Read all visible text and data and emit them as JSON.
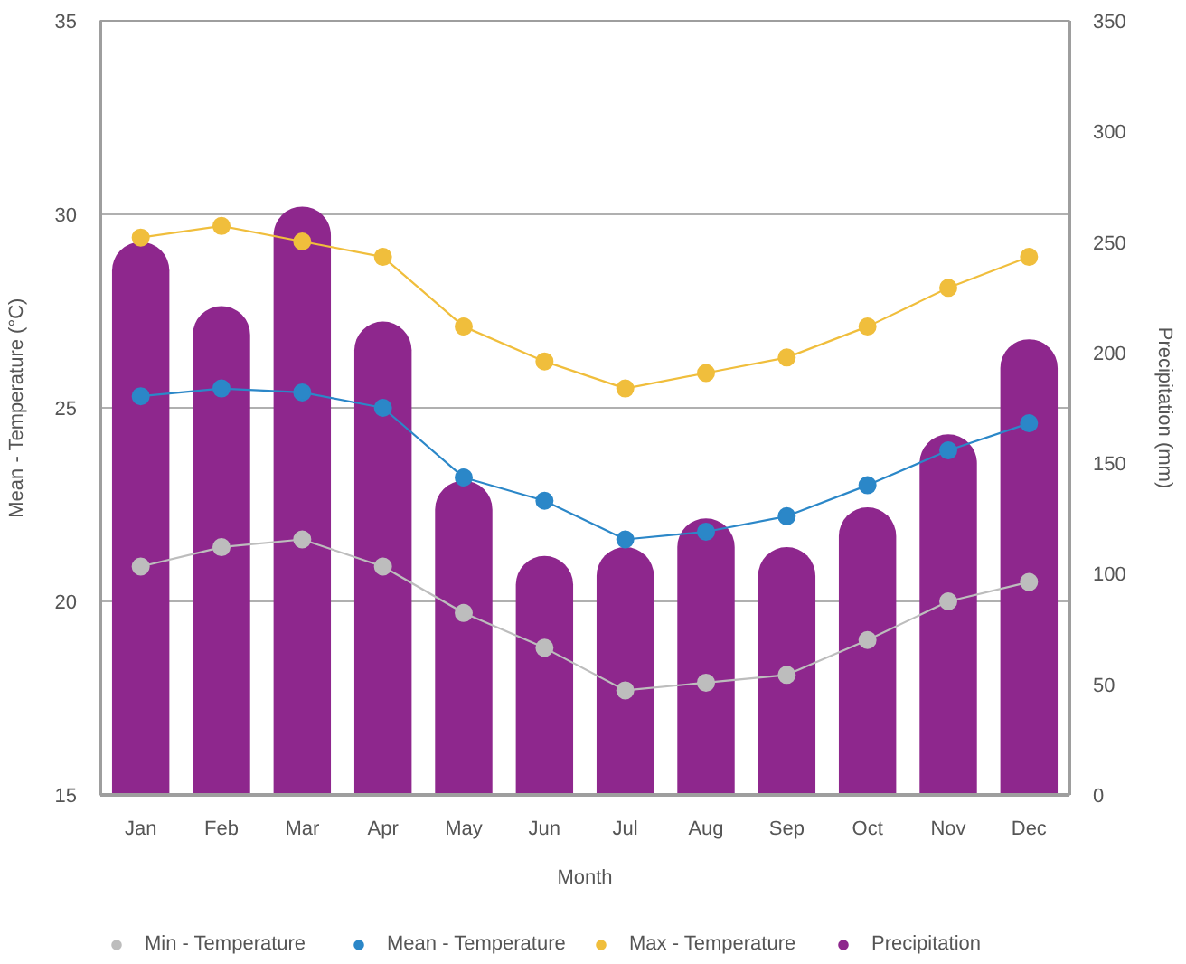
{
  "chart_data": {
    "type": "bar",
    "xlabel": "Month",
    "ylabel": "Mean - Temperature (°C)",
    "y2label": "Precipitation (mm)",
    "categories": [
      "Jan",
      "Feb",
      "Mar",
      "Apr",
      "May",
      "Jun",
      "Jul",
      "Aug",
      "Sep",
      "Oct",
      "Nov",
      "Dec"
    ],
    "series": [
      {
        "name": "Min - Temperature",
        "type": "line",
        "color": "#bdbdbd",
        "values": [
          20.9,
          21.4,
          21.6,
          20.9,
          19.7,
          18.8,
          17.7,
          17.9,
          18.1,
          19.0,
          20.0,
          20.5
        ]
      },
      {
        "name": "Mean - Temperature",
        "type": "line",
        "color": "#2b87c8",
        "values": [
          25.3,
          25.5,
          25.4,
          25.0,
          23.2,
          22.6,
          21.6,
          21.8,
          22.2,
          23.0,
          23.9,
          24.6
        ]
      },
      {
        "name": "Max - Temperature",
        "type": "line",
        "color": "#f0be3c",
        "values": [
          29.4,
          29.7,
          29.3,
          28.9,
          27.1,
          26.2,
          25.5,
          25.9,
          26.3,
          27.1,
          28.1,
          28.9
        ]
      },
      {
        "name": "Precipitation",
        "axis": "y2",
        "color": "#8e278d",
        "values": [
          250,
          221,
          266,
          214,
          142,
          108,
          112,
          125,
          112,
          130,
          163,
          206
        ]
      }
    ],
    "ylim": [
      15,
      35
    ],
    "yticks": [
      15,
      20,
      25,
      30,
      35
    ],
    "y2lim": [
      0,
      350
    ],
    "y2ticks": [
      0,
      50,
      100,
      150,
      200,
      250,
      300,
      350
    ],
    "grid": "y",
    "legend": "bottom",
    "marker": "circle"
  }
}
